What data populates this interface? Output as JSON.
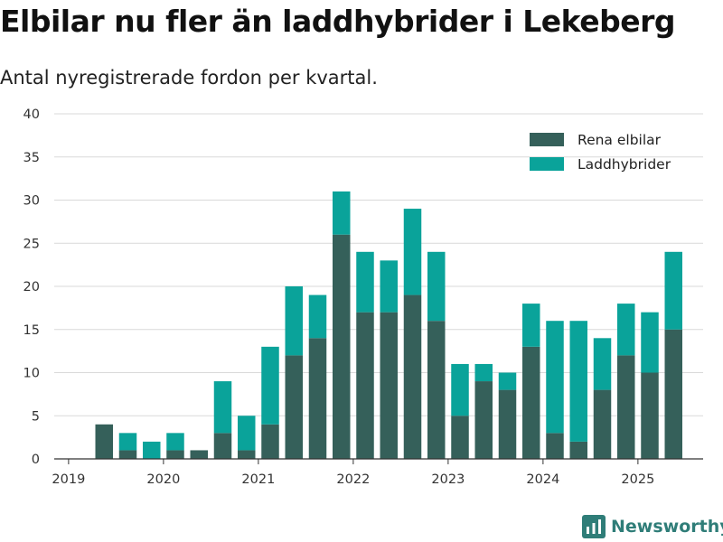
{
  "title": "Elbilar nu fler än laddhybrider i Lekeberg",
  "subtitle": "Antal nyregistrerade fordon per kvartal.",
  "brand": "Newsworthy",
  "colors": {
    "rena": "#35605a",
    "ladd": "#0aa39a",
    "grid": "#d9d9d9",
    "axis": "#333333"
  },
  "chart_data": {
    "type": "bar",
    "stacked": true,
    "x": [
      "2019Q1",
      "2019Q2",
      "2019Q3",
      "2019Q4",
      "2020Q1",
      "2020Q2",
      "2020Q3",
      "2020Q4",
      "2021Q1",
      "2021Q2",
      "2021Q3",
      "2021Q4",
      "2022Q1",
      "2022Q2",
      "2022Q3",
      "2022Q4",
      "2023Q1",
      "2023Q2",
      "2023Q3",
      "2023Q4",
      "2024Q1",
      "2024Q2",
      "2024Q3",
      "2024Q4",
      "2025Q1",
      "2025Q2"
    ],
    "series": [
      {
        "name": "Rena elbilar",
        "values": [
          0,
          4,
          1,
          0,
          1,
          1,
          3,
          1,
          4,
          12,
          14,
          26,
          17,
          17,
          19,
          16,
          5,
          9,
          8,
          13,
          3,
          2,
          8,
          12,
          10,
          15
        ]
      },
      {
        "name": "Laddhybrider",
        "values": [
          0,
          0,
          2,
          2,
          2,
          0,
          6,
          4,
          9,
          8,
          5,
          5,
          7,
          6,
          10,
          8,
          6,
          2,
          2,
          5,
          13,
          14,
          6,
          6,
          7,
          9
        ]
      }
    ],
    "xticks": [
      "2019",
      "2020",
      "2021",
      "2022",
      "2023",
      "2024",
      "2025"
    ],
    "yticks": [
      "0",
      "5",
      "10",
      "15",
      "20",
      "25",
      "30",
      "35",
      "40"
    ],
    "ylim": [
      0,
      40
    ],
    "xlabel": "",
    "ylabel": "",
    "grid": true,
    "legend": "top-right"
  }
}
